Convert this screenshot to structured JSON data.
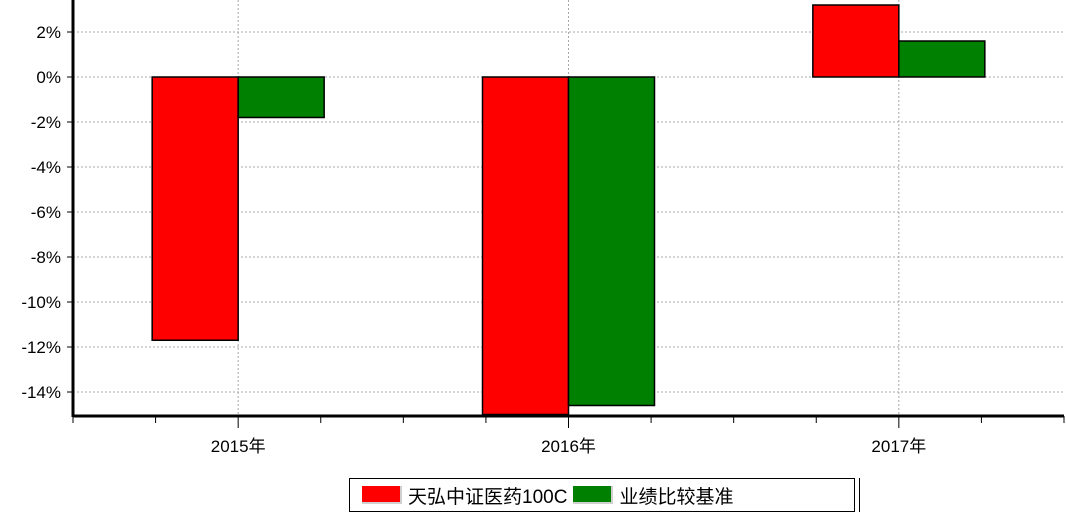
{
  "chart_data": {
    "type": "bar",
    "categories": [
      "2015年",
      "2016年",
      "2017年"
    ],
    "series": [
      {
        "name": "天弘中证医药100C",
        "color": "#ff0000",
        "values": [
          -11.7,
          -15.0,
          3.2
        ]
      },
      {
        "name": "业绩比较基准",
        "color": "#008000",
        "values": [
          -1.8,
          -14.6,
          1.6
        ]
      }
    ],
    "yticks": [
      2,
      0,
      -2,
      -4,
      -6,
      -8,
      -10,
      -12,
      -14
    ],
    "ytick_labels": [
      "2%",
      "0%",
      "-2%",
      "-4%",
      "-6%",
      "-8%",
      "-10%",
      "-12%",
      "-14%"
    ],
    "ylim": [
      -15,
      3.2
    ],
    "grid": true,
    "legend_position": "bottom-center"
  }
}
